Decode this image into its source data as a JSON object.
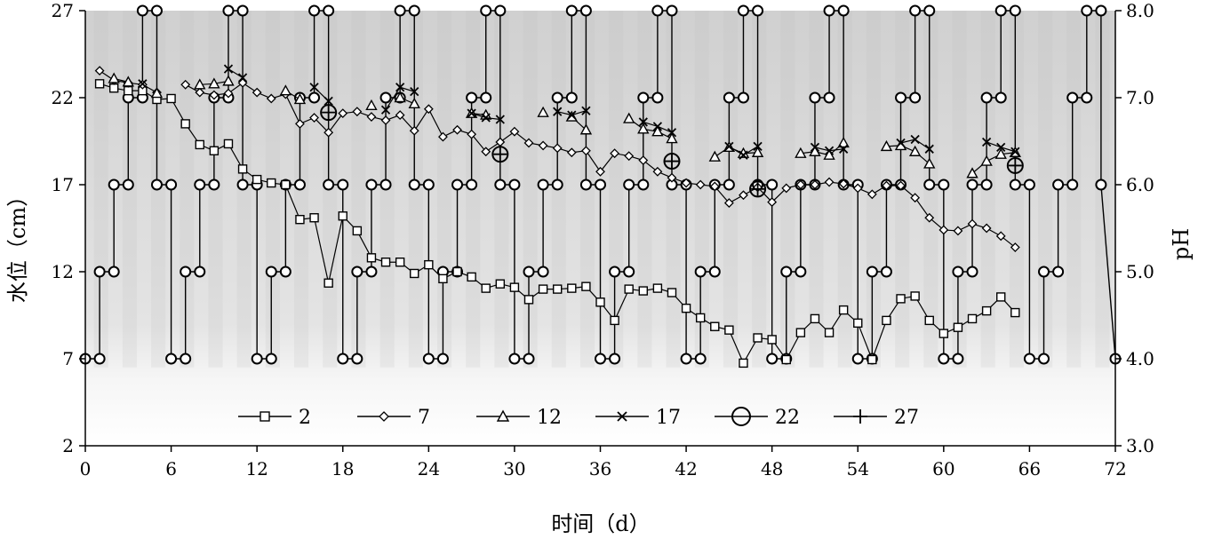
{
  "chart_data": {
    "type": "line",
    "title": "",
    "xlabel": "时间（d）",
    "ylabel": "水位（cm）",
    "y2label": "pH",
    "xlim": [
      0,
      72
    ],
    "ylim": [
      2,
      27
    ],
    "y2lim": [
      3.0,
      8.0
    ],
    "xticks": [
      "0",
      "6",
      "12",
      "18",
      "24",
      "30",
      "36",
      "42",
      "48",
      "54",
      "60",
      "66",
      "72"
    ],
    "yticks": [
      "2",
      "7",
      "12",
      "17",
      "22",
      "27"
    ],
    "y2ticks": [
      "3.0",
      "4.0",
      "5.0",
      "6.0",
      "7.0",
      "8.0"
    ],
    "legend_position": "bottom-center",
    "water_level_series": {
      "x": [
        0,
        1,
        1,
        2,
        2,
        3,
        3,
        4,
        4,
        5,
        5,
        6,
        6,
        7,
        7,
        8,
        8,
        9,
        9,
        10,
        10,
        11,
        11,
        12,
        12,
        13,
        13,
        14,
        14,
        15,
        15,
        16,
        16,
        17,
        17,
        18,
        18,
        19,
        19,
        20,
        20,
        21,
        21,
        22,
        22,
        23,
        23,
        24,
        24,
        25,
        25,
        26,
        26,
        27,
        27,
        28,
        28,
        29,
        29,
        30,
        30,
        31,
        31,
        32,
        32,
        33,
        33,
        34,
        34,
        35,
        35,
        36,
        36,
        37,
        37,
        38,
        38,
        39,
        39,
        40,
        40,
        41,
        41,
        42,
        42,
        43,
        43,
        44,
        44,
        45,
        45,
        46,
        46,
        47,
        47,
        48,
        48,
        49,
        49,
        50,
        50,
        51,
        51,
        52,
        52,
        53,
        53,
        54,
        54,
        55,
        55,
        56,
        56,
        57,
        57,
        58,
        58,
        59,
        59,
        60,
        60,
        61,
        61,
        62,
        62,
        63,
        63,
        64,
        64,
        65,
        65,
        66,
        66,
        67,
        67,
        68,
        68,
        69,
        69,
        70,
        70,
        71,
        71,
        72
      ],
      "y": [
        7,
        7,
        12,
        12,
        17,
        17,
        22,
        22,
        27,
        27,
        17,
        17,
        7,
        7,
        12,
        12,
        17,
        17,
        22,
        22,
        27,
        27,
        17,
        17,
        7,
        7,
        12,
        12,
        17,
        17,
        22,
        22,
        27,
        27,
        17,
        17,
        7,
        7,
        12,
        12,
        17,
        17,
        22,
        22,
        27,
        27,
        17,
        17,
        7,
        7,
        12,
        12,
        17,
        17,
        22,
        22,
        27,
        27,
        17,
        17,
        7,
        7,
        12,
        12,
        17,
        17,
        22,
        22,
        27,
        27,
        17,
        17,
        7,
        7,
        12,
        12,
        17,
        17,
        22,
        22,
        27,
        27,
        17,
        17,
        7,
        7,
        12,
        12,
        17,
        17,
        22,
        22,
        27,
        27,
        17,
        17,
        7,
        7,
        12,
        12,
        17,
        17,
        22,
        22,
        27,
        27,
        17,
        17,
        7,
        7,
        12,
        12,
        17,
        17,
        22,
        22,
        27,
        27,
        17,
        17,
        7,
        7,
        12,
        12,
        17,
        17,
        22,
        22,
        27,
        27,
        17,
        17,
        7,
        7,
        12,
        12,
        17,
        17,
        22,
        22,
        27,
        27,
        17,
        7
      ]
    },
    "series": [
      {
        "name": "2",
        "marker": "square",
        "x": [
          1,
          2,
          3,
          4,
          5,
          6,
          7,
          8,
          9,
          10,
          11,
          12,
          13,
          14,
          15,
          16,
          17,
          18,
          19,
          20,
          21,
          22,
          23,
          24,
          25,
          26,
          27,
          28,
          29,
          30,
          31,
          32,
          33,
          34,
          35,
          36,
          37,
          38,
          39,
          40,
          41,
          42,
          43,
          44,
          45,
          46,
          47,
          48,
          49,
          50,
          51,
          52,
          53,
          54,
          55,
          56,
          57,
          58,
          59,
          60,
          61,
          62,
          63,
          64,
          65
        ],
        "ph": [
          7.16,
          7.11,
          7.08,
          7.08,
          6.98,
          6.99,
          6.7,
          6.46,
          6.39,
          6.47,
          6.18,
          6.06,
          6.02,
          6.0,
          5.6,
          5.62,
          4.87,
          5.64,
          5.47,
          5.16,
          5.11,
          5.11,
          4.98,
          5.08,
          4.92,
          5.0,
          4.94,
          4.81,
          4.86,
          4.82,
          4.68,
          4.8,
          4.8,
          4.81,
          4.83,
          4.65,
          4.44,
          4.8,
          4.78,
          4.81,
          4.76,
          4.58,
          4.47,
          4.37,
          4.33,
          3.95,
          4.24,
          4.22,
          3.99,
          4.3,
          4.46,
          4.3,
          4.56,
          4.41,
          3.99,
          4.44,
          4.69,
          4.72,
          4.44,
          4.29,
          4.36,
          4.46,
          4.55,
          4.71,
          4.53
        ]
      },
      {
        "name": "7",
        "marker": "diamond",
        "x": [
          1,
          2,
          3,
          4,
          5,
          7,
          8,
          9,
          10,
          11,
          12,
          13,
          14,
          15,
          16,
          17,
          18,
          19,
          20,
          21,
          22,
          23,
          24,
          25,
          26,
          27,
          28,
          29,
          30,
          31,
          32,
          33,
          34,
          35,
          36,
          37,
          38,
          39,
          40,
          41,
          42,
          43,
          44,
          45,
          46,
          47,
          48,
          49,
          50,
          51,
          52,
          53,
          54,
          55,
          56,
          57,
          58,
          59,
          60,
          61,
          62,
          63,
          64,
          65
        ],
        "ph": [
          7.31,
          7.2,
          7.17,
          7.15,
          7.06,
          7.15,
          7.06,
          7.03,
          7.05,
          7.17,
          7.06,
          6.99,
          7.04,
          6.7,
          6.77,
          6.6,
          6.82,
          6.84,
          6.78,
          6.74,
          6.8,
          6.62,
          6.87,
          6.55,
          6.63,
          6.58,
          6.38,
          6.49,
          6.61,
          6.48,
          6.45,
          6.42,
          6.37,
          6.39,
          6.15,
          6.36,
          6.33,
          6.28,
          6.15,
          6.08,
          6.02,
          6.0,
          5.98,
          5.79,
          5.88,
          5.97,
          5.8,
          5.96,
          6.0,
          6.0,
          6.03,
          6.01,
          5.96,
          5.89,
          5.99,
          5.99,
          5.85,
          5.62,
          5.48,
          5.47,
          5.55,
          5.5,
          5.41,
          5.28
        ]
      },
      {
        "name": "12",
        "marker": "triangle",
        "x": [
          2,
          3,
          5,
          8,
          9,
          10,
          14,
          15,
          20,
          22,
          23,
          27,
          28,
          32,
          34,
          35,
          38,
          39,
          40,
          41,
          44,
          45,
          46,
          47,
          50,
          51,
          52,
          53,
          56,
          57,
          58,
          59,
          62,
          63,
          64,
          65
        ],
        "ph": [
          7.22,
          7.18,
          7.05,
          7.15,
          7.16,
          7.19,
          7.08,
          6.98,
          6.91,
          7.0,
          6.93,
          6.82,
          6.8,
          6.83,
          6.78,
          6.63,
          6.76,
          6.64,
          6.61,
          6.53,
          6.32,
          6.43,
          6.36,
          6.37,
          6.36,
          6.38,
          6.34,
          6.48,
          6.44,
          6.45,
          6.38,
          6.24,
          6.13,
          6.27,
          6.35,
          6.37
        ]
      },
      {
        "name": "17",
        "marker": "x",
        "x": [
          4,
          10,
          11,
          16,
          17,
          21,
          22,
          23,
          27,
          28,
          29,
          33,
          34,
          35,
          39,
          40,
          41,
          45,
          46,
          47,
          51,
          52,
          53,
          57,
          58,
          59,
          63,
          64,
          65
        ],
        "ph": [
          7.16,
          7.33,
          7.23,
          7.12,
          6.96,
          6.86,
          7.12,
          7.07,
          6.82,
          6.77,
          6.75,
          6.84,
          6.8,
          6.85,
          6.72,
          6.67,
          6.6,
          6.44,
          6.34,
          6.44,
          6.43,
          6.39,
          6.41,
          6.48,
          6.52,
          6.41,
          6.49,
          6.43,
          6.38
        ]
      },
      {
        "name": "22",
        "marker": "circle",
        "x": [
          17,
          29,
          41,
          47,
          65
        ],
        "ph": [
          6.83,
          6.35,
          6.27,
          5.95,
          6.22
        ]
      },
      {
        "name": "27",
        "marker": "plus",
        "x": [
          17,
          29,
          41,
          47,
          65
        ],
        "ph": [
          6.83,
          6.35,
          6.27,
          5.95,
          6.22
        ]
      }
    ]
  }
}
